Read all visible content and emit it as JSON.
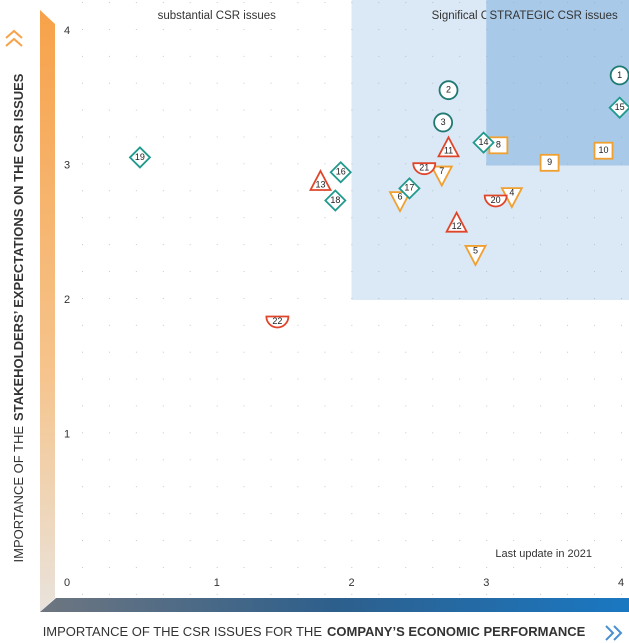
{
  "chart_data": {
    "type": "scatter",
    "xlim": [
      0,
      4
    ],
    "ylim": [
      0,
      4
    ],
    "xticks": [
      0,
      1,
      2,
      3,
      4
    ],
    "yticks": [
      1,
      2,
      3,
      4
    ],
    "x_label": {
      "text": "IMPORTANCE OF THE CSR ISSUES FOR THE",
      "bold": "COMPANY’S ECONOMIC PERFORMANCE"
    },
    "y_label": {
      "text": "IMPORTANCE OF THE",
      "bold": "STAKEHOLDERS’ EXPECTATIONS ON THE CSR ISSUES"
    },
    "annotation": "Last update in 2021",
    "regions": [
      {
        "label": "substantial CSR issues",
        "x": [
          0,
          2
        ],
        "y": [
          0,
          4
        ]
      },
      {
        "label": "Significal CSR issues",
        "x": [
          2,
          4
        ],
        "y": [
          2,
          4
        ],
        "color": "#dbe8f5"
      },
      {
        "label": "STRATEGIC CSR issues",
        "x": [
          3,
          4
        ],
        "y": [
          3,
          4
        ],
        "color": "#a9c9e8"
      }
    ],
    "points": [
      {
        "label": "1",
        "shape": "circle",
        "color": "#1f7a73",
        "x": 3.99,
        "y": 3.67
      },
      {
        "label": "2",
        "shape": "circle",
        "color": "#1f7a73",
        "x": 2.72,
        "y": 3.56
      },
      {
        "label": "3",
        "shape": "circle",
        "color": "#1f7a73",
        "x": 2.68,
        "y": 3.32
      },
      {
        "label": "4",
        "shape": "triangle-down",
        "color": "#f0a030",
        "x": 3.19,
        "y": 2.78
      },
      {
        "label": "5",
        "shape": "triangle-down",
        "color": "#f0a030",
        "x": 2.92,
        "y": 2.35
      },
      {
        "label": "6",
        "shape": "triangle-down",
        "color": "#f0a030",
        "x": 2.36,
        "y": 2.75
      },
      {
        "label": "7",
        "shape": "triangle-down",
        "color": "#f0a030",
        "x": 2.67,
        "y": 2.94
      },
      {
        "label": "8",
        "shape": "square",
        "color": "#f0a030",
        "x": 3.09,
        "y": 3.15
      },
      {
        "label": "9",
        "shape": "square",
        "color": "#f0a030",
        "x": 3.47,
        "y": 3.02
      },
      {
        "label": "10",
        "shape": "square",
        "color": "#f0a030",
        "x": 3.87,
        "y": 3.11
      },
      {
        "label": "11",
        "shape": "triangle-up",
        "color": "#e0452b",
        "x": 2.72,
        "y": 3.12
      },
      {
        "label": "12",
        "shape": "triangle-up",
        "color": "#e0452b",
        "x": 2.78,
        "y": 2.56
      },
      {
        "label": "13",
        "shape": "triangle-up",
        "color": "#e0452b",
        "x": 1.77,
        "y": 2.87
      },
      {
        "label": "14",
        "shape": "diamond",
        "color": "#1f9a8c",
        "x": 2.98,
        "y": 3.17
      },
      {
        "label": "15",
        "shape": "diamond",
        "color": "#1f9a8c",
        "x": 3.99,
        "y": 3.43
      },
      {
        "label": "16",
        "shape": "diamond",
        "color": "#1f9a8c",
        "x": 1.92,
        "y": 2.95
      },
      {
        "label": "17",
        "shape": "diamond",
        "color": "#1f9a8c",
        "x": 2.43,
        "y": 2.83
      },
      {
        "label": "18",
        "shape": "diamond",
        "color": "#1f9a8c",
        "x": 1.88,
        "y": 2.74
      },
      {
        "label": "19",
        "shape": "diamond",
        "color": "#1f9a8c",
        "x": 0.43,
        "y": 3.06
      },
      {
        "label": "20",
        "shape": "semicircle",
        "color": "#e0452b",
        "x": 3.07,
        "y": 2.74
      },
      {
        "label": "21",
        "shape": "semicircle",
        "color": "#e0452b",
        "x": 2.54,
        "y": 2.98
      },
      {
        "label": "22",
        "shape": "semicircle",
        "color": "#e0452b",
        "x": 1.45,
        "y": 1.84
      }
    ]
  }
}
